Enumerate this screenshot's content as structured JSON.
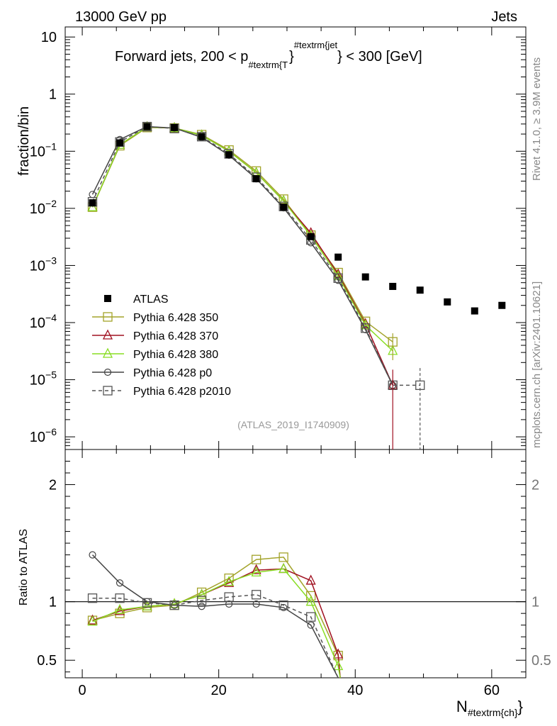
{
  "header": {
    "left": "13000 GeV pp",
    "right": "Jets"
  },
  "plot_title": {
    "prefix": "Forward jets, 200 < p",
    "sub": "#textrm{T",
    "sup": "#textrm{jet",
    "suffix": " < 300 [GeV]"
  },
  "side_text": {
    "rivet": "Rivet 4.1.0, ≥ 3.9M events",
    "mcplots": "mcplots.cern.ch [arXiv:2401.10621]"
  },
  "analysis_id": "(ATLAS_2019_I1740909)",
  "chart_data": {
    "type": "line",
    "title": "Forward jets, 200 < p_T^jet < 300 [GeV]",
    "xlabel": "N_ch",
    "xlabel_main": "N",
    "xlabel_sub": "#textrm{ch}",
    "ylabel": "fraction/bin",
    "ratio_ylabel": "Ratio to ATLAS",
    "xlim": [
      -2.5,
      65
    ],
    "ylim": [
      6e-07,
      15
    ],
    "ratio_ylim": [
      0.35,
      2.3
    ],
    "x_ticks": [
      0,
      20,
      40,
      60
    ],
    "x_tick_labels": [
      "0",
      "20",
      "40",
      "60"
    ],
    "y_ticks": [
      1e-06,
      1e-05,
      0.0001,
      0.001,
      0.01,
      0.1,
      1,
      10
    ],
    "y_tick_labels": [
      {
        "base": "10",
        "exp": "−6"
      },
      {
        "base": "10",
        "exp": "−5"
      },
      {
        "base": "10",
        "exp": "−4"
      },
      {
        "base": "10",
        "exp": "−3"
      },
      {
        "base": "10",
        "exp": "−2"
      },
      {
        "base": "10",
        "exp": "−1"
      },
      {
        "base": "1",
        "exp": ""
      },
      {
        "base": "10",
        "exp": ""
      }
    ],
    "ratio_ticks": [
      0.5,
      1,
      2
    ],
    "ratio_tick_labels": [
      "0.5",
      "1",
      "2"
    ],
    "legend_position": "middle-left",
    "data": {
      "name": "ATLAS",
      "color": "#000000",
      "x": [
        1.5,
        5.5,
        9.5,
        13.5,
        17.5,
        21.5,
        25.5,
        29.5,
        33.5,
        37.5,
        41.5,
        45.5,
        49.5,
        53.5,
        57.5,
        61.5
      ],
      "y": [
        0.0125,
        0.14,
        0.27,
        0.26,
        0.18,
        0.087,
        0.033,
        0.0105,
        0.0032,
        0.0014,
        0.00063,
        0.00043,
        0.00037,
        0.00023,
        0.00016,
        0.0002
      ]
    },
    "series": [
      {
        "name": "Pythia 6.428 350",
        "color": "#a3a32a",
        "marker": "square",
        "dash": false,
        "x": [
          1.5,
          5.5,
          9.5,
          13.5,
          17.5,
          21.5,
          25.5,
          29.5,
          33.5,
          37.5,
          41.5,
          45.5
        ],
        "y": [
          0.0105,
          0.125,
          0.26,
          0.255,
          0.195,
          0.105,
          0.045,
          0.0145,
          0.0034,
          0.00075,
          0.000105,
          4.6e-05
        ],
        "ratio_x": [
          1.5,
          5.5,
          9.5,
          13.5,
          17.5,
          21.5,
          25.5,
          29.5,
          33.5,
          37.5,
          37.8
        ],
        "ratio": [
          0.84,
          0.9,
          0.95,
          0.97,
          1.08,
          1.2,
          1.36,
          1.38,
          1.05,
          0.54,
          0.35
        ]
      },
      {
        "name": "Pythia 6.428 370",
        "color": "#a01020",
        "marker": "triangle",
        "dash": false,
        "x": [
          1.5,
          5.5,
          9.5,
          13.5,
          17.5,
          21.5,
          25.5,
          29.5,
          33.5,
          37.5,
          41.5,
          45.5
        ],
        "y": [
          0.0105,
          0.13,
          0.265,
          0.255,
          0.19,
          0.1,
          0.042,
          0.0135,
          0.0037,
          0.0007,
          9.5e-05,
          8e-06
        ],
        "ratio_x": [
          1.5,
          5.5,
          9.5,
          13.5,
          17.5,
          21.5,
          25.5,
          29.5,
          33.5,
          37.5,
          37.8
        ],
        "ratio": [
          0.84,
          0.92,
          0.96,
          0.98,
          1.06,
          1.16,
          1.27,
          1.28,
          1.18,
          0.55,
          0.35
        ]
      },
      {
        "name": "Pythia 6.428 380",
        "color": "#88dd22",
        "marker": "triangle",
        "dash": false,
        "x": [
          1.5,
          5.5,
          9.5,
          13.5,
          17.5,
          21.5,
          25.5,
          29.5,
          33.5,
          37.5,
          41.5,
          45.5
        ],
        "y": [
          0.0105,
          0.13,
          0.265,
          0.255,
          0.19,
          0.1,
          0.042,
          0.0135,
          0.0033,
          0.00065,
          9e-05,
          3.2e-05
        ],
        "ratio_x": [
          1.5,
          5.5,
          9.5,
          13.5,
          17.5,
          21.5,
          25.5,
          29.5,
          33.5,
          37.5,
          37.8
        ],
        "ratio": [
          0.83,
          0.93,
          0.96,
          0.98,
          1.06,
          1.17,
          1.25,
          1.28,
          1.0,
          0.45,
          0.35
        ]
      },
      {
        "name": "Pythia 6.428 p0",
        "color": "#444444",
        "marker": "circle",
        "dash": false,
        "x": [
          1.5,
          5.5,
          9.5,
          13.5,
          17.5,
          21.5,
          25.5,
          29.5,
          33.5,
          37.5,
          41.5,
          45.5
        ],
        "y": [
          0.0175,
          0.16,
          0.27,
          0.255,
          0.175,
          0.085,
          0.033,
          0.0102,
          0.0025,
          0.00055,
          7.5e-05,
          8e-06
        ],
        "ratio_x": [
          1.5,
          5.5,
          9.5,
          13.5,
          17.5,
          21.5,
          25.5,
          29.5,
          33.5,
          37.5
        ],
        "ratio": [
          1.4,
          1.16,
          1.0,
          0.97,
          0.96,
          0.98,
          0.98,
          0.95,
          0.8,
          0.35
        ]
      },
      {
        "name": "Pythia 6.428 p2010",
        "color": "#555555",
        "marker": "square",
        "dash": true,
        "x": [
          1.5,
          5.5,
          9.5,
          13.5,
          17.5,
          21.5,
          25.5,
          29.5,
          33.5,
          37.5,
          41.5,
          45.5,
          49.5
        ],
        "y": [
          0.013,
          0.145,
          0.27,
          0.25,
          0.18,
          0.09,
          0.035,
          0.0108,
          0.0028,
          0.0006,
          8e-05,
          8e-06,
          8e-06
        ],
        "ratio_x": [
          1.5,
          5.5,
          9.5,
          13.5,
          17.5,
          21.5,
          25.5,
          29.5,
          33.5,
          37.5
        ],
        "ratio": [
          1.03,
          1.03,
          0.99,
          0.97,
          1.01,
          1.04,
          1.06,
          0.97,
          0.87,
          0.35
        ]
      }
    ]
  }
}
